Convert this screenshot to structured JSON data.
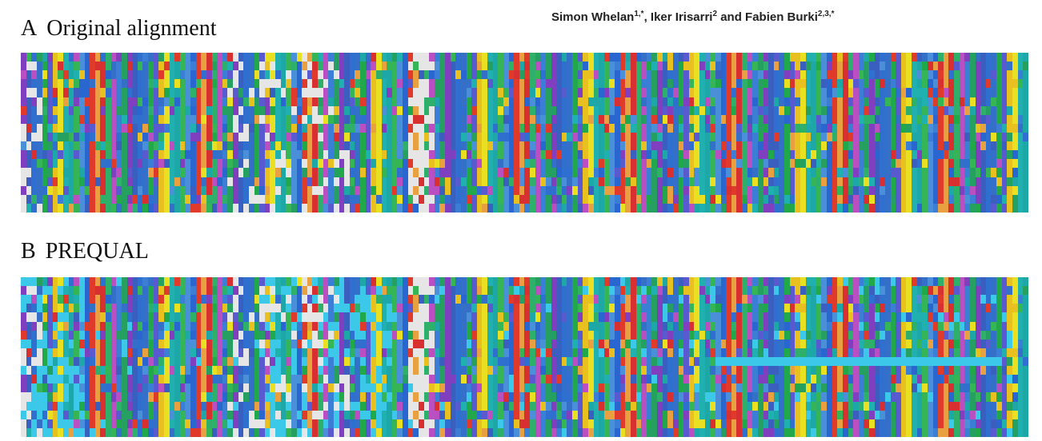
{
  "header": {
    "authors_part1": "Simon Whelan",
    "authors_sup1": "1,*",
    "authors_part2": ", Iker Irisarri",
    "authors_sup2": "2",
    "authors_part3": " and Fabien Burki",
    "authors_sup3": "2,3,*"
  },
  "panels": [
    {
      "letter": "A",
      "title": "Original alignment",
      "masked": false
    },
    {
      "letter": "B",
      "title": "PREQUAL",
      "masked": true
    }
  ],
  "alignment": {
    "rows": 18,
    "columns": 190,
    "residue_colors": {
      "A": "#4a90d9",
      "C": "#e8a040",
      "D": "#b94fc0",
      "E": "#7f3fbf",
      "F": "#3570c8",
      "G": "#e8c020",
      "H": "#1ea7a7",
      "I": "#2a66d0",
      "K": "#d83030",
      "L": "#3a7fd5",
      "M": "#3a5fbf",
      "N": "#21a84a",
      "P": "#e8e020",
      "Q": "#35b556",
      "R": "#e03a2a",
      "S": "#2fb06a",
      "T": "#25a060",
      "V": "#2f6fd0",
      "W": "#5a5ad0",
      "Y": "#20b0b0",
      "gap": "#e6e6e6",
      "masked": "#3cc8e8"
    }
  }
}
